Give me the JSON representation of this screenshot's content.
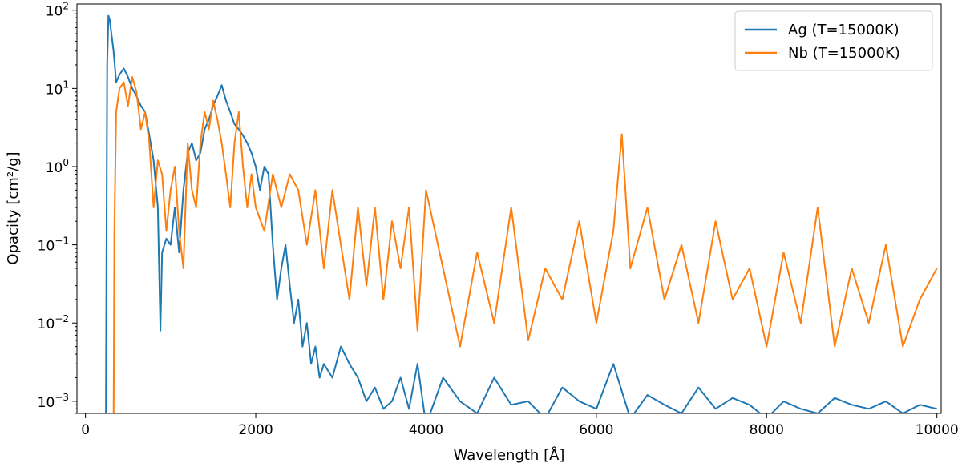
{
  "chart_data": {
    "type": "line",
    "xlabel": "Wavelength [Å]",
    "ylabel": "Opacity [cm²/g]",
    "xlim": [
      -100,
      10050
    ],
    "ylim": [
      0.0007,
      120
    ],
    "yscale": "log",
    "grid": false,
    "legend_position": "top-right",
    "x_ticks": [
      0,
      2000,
      4000,
      6000,
      8000,
      10000
    ],
    "x_tick_labels": [
      "0",
      "2000",
      "4000",
      "6000",
      "8000",
      "10000"
    ],
    "y_ticks": [
      0.001,
      0.01,
      0.1,
      1,
      10,
      100
    ],
    "y_tick_labels": [
      {
        "base": "10",
        "exp": "−3"
      },
      {
        "base": "10",
        "exp": "−2"
      },
      {
        "base": "10",
        "exp": "−1"
      },
      {
        "base": "10",
        "exp": "0"
      },
      {
        "base": "10",
        "exp": "1"
      },
      {
        "base": "10",
        "exp": "2"
      }
    ],
    "series": [
      {
        "name": "Ag (T=15000K)",
        "color": "#1f77b4",
        "x": [
          240,
          255,
          270,
          285,
          300,
          330,
          360,
          400,
          450,
          500,
          550,
          600,
          650,
          700,
          750,
          800,
          850,
          880,
          900,
          950,
          1000,
          1050,
          1100,
          1150,
          1200,
          1250,
          1300,
          1350,
          1400,
          1450,
          1500,
          1550,
          1600,
          1650,
          1700,
          1750,
          1800,
          1850,
          1900,
          1950,
          2000,
          2050,
          2100,
          2150,
          2200,
          2250,
          2300,
          2350,
          2400,
          2450,
          2500,
          2550,
          2600,
          2650,
          2700,
          2750,
          2800,
          2900,
          3000,
          3100,
          3200,
          3300,
          3400,
          3500,
          3600,
          3700,
          3800,
          3900,
          4000,
          4200,
          4400,
          4600,
          4800,
          5000,
          5200,
          5400,
          5600,
          5800,
          6000,
          6200,
          6400,
          6600,
          6800,
          7000,
          7200,
          7400,
          7600,
          7800,
          8000,
          8200,
          8400,
          8600,
          8800,
          9000,
          9200,
          9400,
          9600,
          9800,
          10000
        ],
        "values": [
          0.0005,
          20,
          85,
          75,
          55,
          30,
          12,
          15,
          18,
          14,
          10,
          8,
          6,
          5,
          2.5,
          1.2,
          0.3,
          0.008,
          0.08,
          0.12,
          0.1,
          0.3,
          0.08,
          0.5,
          1.5,
          2.0,
          1.2,
          1.5,
          3,
          4,
          6,
          8,
          11,
          7,
          5,
          3.5,
          3,
          2.5,
          2,
          1.5,
          1,
          0.5,
          1,
          0.8,
          0.1,
          0.02,
          0.05,
          0.1,
          0.03,
          0.01,
          0.02,
          0.005,
          0.01,
          0.003,
          0.005,
          0.002,
          0.003,
          0.002,
          0.005,
          0.003,
          0.002,
          0.001,
          0.0015,
          0.0008,
          0.001,
          0.002,
          0.0008,
          0.003,
          0.0005,
          0.002,
          0.001,
          0.0007,
          0.002,
          0.0009,
          0.001,
          0.0006,
          0.0015,
          0.001,
          0.0008,
          0.003,
          0.0006,
          0.0012,
          0.0009,
          0.0007,
          0.0015,
          0.0008,
          0.0011,
          0.0009,
          0.0006,
          0.001,
          0.0008,
          0.0007,
          0.0011,
          0.0009,
          0.0008,
          0.001,
          0.0007,
          0.0009,
          0.0008
        ]
      },
      {
        "name": "Nb (T=15000K)",
        "color": "#ff7f0e",
        "x": [
          330,
          340,
          360,
          400,
          450,
          500,
          550,
          600,
          650,
          700,
          750,
          800,
          850,
          900,
          950,
          1000,
          1050,
          1100,
          1150,
          1200,
          1250,
          1300,
          1350,
          1400,
          1450,
          1500,
          1550,
          1600,
          1650,
          1700,
          1750,
          1800,
          1850,
          1900,
          1950,
          2000,
          2100,
          2200,
          2300,
          2400,
          2500,
          2600,
          2700,
          2800,
          2900,
          3000,
          3100,
          3200,
          3300,
          3400,
          3500,
          3600,
          3700,
          3800,
          3900,
          4000,
          4200,
          4400,
          4600,
          4800,
          5000,
          5200,
          5400,
          5600,
          5800,
          6000,
          6200,
          6300,
          6400,
          6600,
          6800,
          7000,
          7200,
          7400,
          7600,
          7800,
          8000,
          8200,
          8400,
          8600,
          8800,
          9000,
          9200,
          9400,
          9600,
          9800,
          10000
        ],
        "values": [
          0.0005,
          0.15,
          5,
          10,
          12,
          6,
          14,
          9,
          3,
          5,
          2,
          0.3,
          1.2,
          0.8,
          0.15,
          0.5,
          1.0,
          0.15,
          0.05,
          2.0,
          0.5,
          0.3,
          2,
          5,
          3,
          7,
          4,
          2,
          0.8,
          0.3,
          2,
          5,
          1.0,
          0.3,
          0.8,
          0.3,
          0.15,
          0.8,
          0.3,
          0.8,
          0.5,
          0.1,
          0.5,
          0.05,
          0.5,
          0.1,
          0.02,
          0.3,
          0.03,
          0.3,
          0.02,
          0.2,
          0.05,
          0.3,
          0.008,
          0.5,
          0.05,
          0.005,
          0.08,
          0.01,
          0.3,
          0.006,
          0.05,
          0.02,
          0.2,
          0.01,
          0.15,
          2.6,
          0.05,
          0.3,
          0.02,
          0.1,
          0.01,
          0.2,
          0.02,
          0.05,
          0.005,
          0.08,
          0.01,
          0.3,
          0.005,
          0.05,
          0.01,
          0.1,
          0.005,
          0.02,
          0.05
        ]
      }
    ]
  }
}
